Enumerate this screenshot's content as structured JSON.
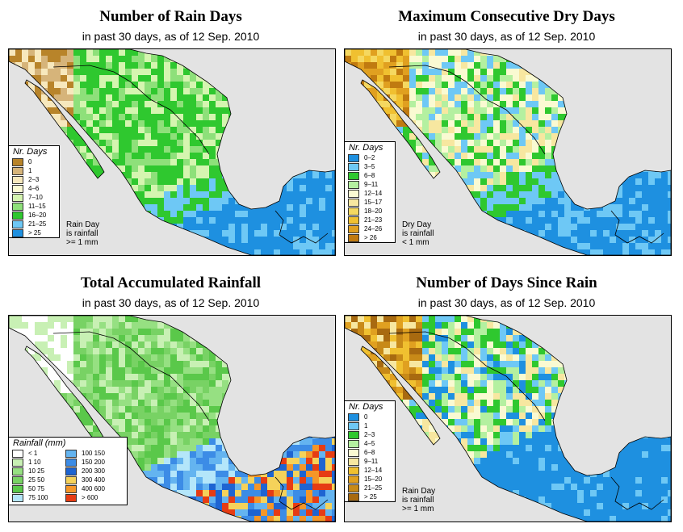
{
  "panels": {
    "rain_days": {
      "title": "Number of Rain Days",
      "subtitle": "in past 30 days, as of  12 Sep. 2010",
      "legend_title": "Nr. Days",
      "legend": [
        {
          "label": "0",
          "color": "#b8842a"
        },
        {
          "label": "1",
          "color": "#d6b47a"
        },
        {
          "label": "2–3",
          "color": "#f7e8bd"
        },
        {
          "label": "4–6",
          "color": "#fafad2"
        },
        {
          "label": "7–10",
          "color": "#d5f5b0"
        },
        {
          "label": "11–15",
          "color": "#8ee07a"
        },
        {
          "label": "16–20",
          "color": "#2fc82f"
        },
        {
          "label": "21–25",
          "color": "#6ec8f5"
        },
        {
          "label": "> 25",
          "color": "#1e90e0"
        }
      ],
      "note": [
        "Rain Day",
        "is rainfall",
        ">= 1 mm"
      ]
    },
    "dry_days": {
      "title": "Maximum Consecutive Dry Days",
      "subtitle": "in past 30 days, as of  12 Sep. 2010",
      "legend_title": "Nr. Days",
      "legend": [
        {
          "label": "0–2",
          "color": "#1e90e0"
        },
        {
          "label": "3–5",
          "color": "#6ec8f5"
        },
        {
          "label": "6–8",
          "color": "#2fc82f"
        },
        {
          "label": "9–11",
          "color": "#b4f0a0"
        },
        {
          "label": "12–14",
          "color": "#fafad2"
        },
        {
          "label": "15–17",
          "color": "#f7e7a0"
        },
        {
          "label": "18–20",
          "color": "#f5d860"
        },
        {
          "label": "21–23",
          "color": "#f0c030"
        },
        {
          "label": "24–26",
          "color": "#e0a020"
        },
        {
          "label": "> 26",
          "color": "#c07a10"
        }
      ],
      "note": [
        "Dry Day",
        "is rainfall",
        "< 1 mm"
      ]
    },
    "total_rainfall": {
      "title": "Total Accumulated Rainfall",
      "subtitle": "in past 30 days, as of  12 Sep. 2010",
      "legend_title": "Rainfall (mm)",
      "legend_left": [
        {
          "label": "< 1",
          "color": "#ffffff"
        },
        {
          "label": "1    10",
          "color": "#c8f0b4"
        },
        {
          "label": "10    25",
          "color": "#96e082"
        },
        {
          "label": "25    50",
          "color": "#78d264"
        },
        {
          "label": "50    75",
          "color": "#5ac84a"
        },
        {
          "label": "75  100",
          "color": "#b4e6fa"
        }
      ],
      "legend_right": [
        {
          "label": "100  150",
          "color": "#64b4f0"
        },
        {
          "label": "150  200",
          "color": "#3c8ce6"
        },
        {
          "label": "200  300",
          "color": "#1e64d2"
        },
        {
          "label": "300  400",
          "color": "#f5d25a"
        },
        {
          "label": "400  600",
          "color": "#f59628"
        },
        {
          "label": "> 600",
          "color": "#e63c14"
        }
      ]
    },
    "days_since_rain": {
      "title": "Number of Days Since Rain",
      "subtitle": "in past 30 days, as of  12 Sep. 2010",
      "legend_title": "Nr. Days",
      "legend": [
        {
          "label": "0",
          "color": "#1e90e0"
        },
        {
          "label": "1",
          "color": "#6ec8f5"
        },
        {
          "label": "2–3",
          "color": "#2fc82f"
        },
        {
          "label": "4–5",
          "color": "#b4f0a0"
        },
        {
          "label": "6–8",
          "color": "#fafad2"
        },
        {
          "label": "9–11",
          "color": "#f7e7a0"
        },
        {
          "label": "12–14",
          "color": "#f0c030"
        },
        {
          "label": "15–20",
          "color": "#e0a020"
        },
        {
          "label": "21–25",
          "color": "#c88a18"
        },
        {
          "label": "> 25",
          "color": "#a86a10"
        }
      ],
      "note": [
        "Rain Day",
        "is rainfall",
        ">= 1 mm"
      ]
    }
  },
  "colors": {
    "ocean": "#e3e3e3",
    "border": "#000000"
  }
}
